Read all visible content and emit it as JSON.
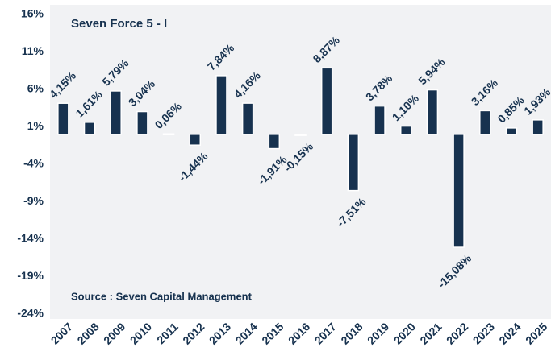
{
  "chart_data": {
    "type": "bar",
    "title": "Seven Force 5 - I",
    "source": "Source : Seven Capital Management",
    "categories": [
      "2007",
      "2008",
      "2009",
      "2010",
      "2011",
      "2012",
      "2013",
      "2014",
      "2015",
      "2016",
      "2017",
      "2018",
      "2019",
      "2020",
      "2021",
      "2022",
      "2023",
      "2024",
      "2025"
    ],
    "values": [
      4.15,
      1.61,
      5.79,
      3.04,
      0.06,
      -1.44,
      7.84,
      4.16,
      -1.91,
      -0.15,
      8.87,
      -7.51,
      3.78,
      1.1,
      5.94,
      -15.08,
      3.16,
      0.85,
      1.93
    ],
    "value_labels": [
      "4,15%",
      "1,61%",
      "5,79%",
      "3,04%",
      "0,06%",
      "-1,44%",
      "7,84%",
      "4,16%",
      "-1,91%",
      "-0,15%",
      "8,87%",
      "-7,51%",
      "3,78%",
      "1,10%",
      "5,94%",
      "-15,08%",
      "3,16%",
      "0,85%",
      "1,93%"
    ],
    "color": "#17324f",
    "ylim": [
      -24,
      16
    ],
    "yticks": [
      {
        "value": 16,
        "label": "16%"
      },
      {
        "value": 11,
        "label": "11%"
      },
      {
        "value": 6,
        "label": "6%"
      },
      {
        "value": 1,
        "label": "1%"
      },
      {
        "value": -4,
        "label": "-4%"
      },
      {
        "value": -9,
        "label": "-9%"
      },
      {
        "value": -14,
        "label": "-14%"
      },
      {
        "value": -19,
        "label": "-19%"
      },
      {
        "value": -24,
        "label": "-24%"
      }
    ],
    "grid": false
  }
}
